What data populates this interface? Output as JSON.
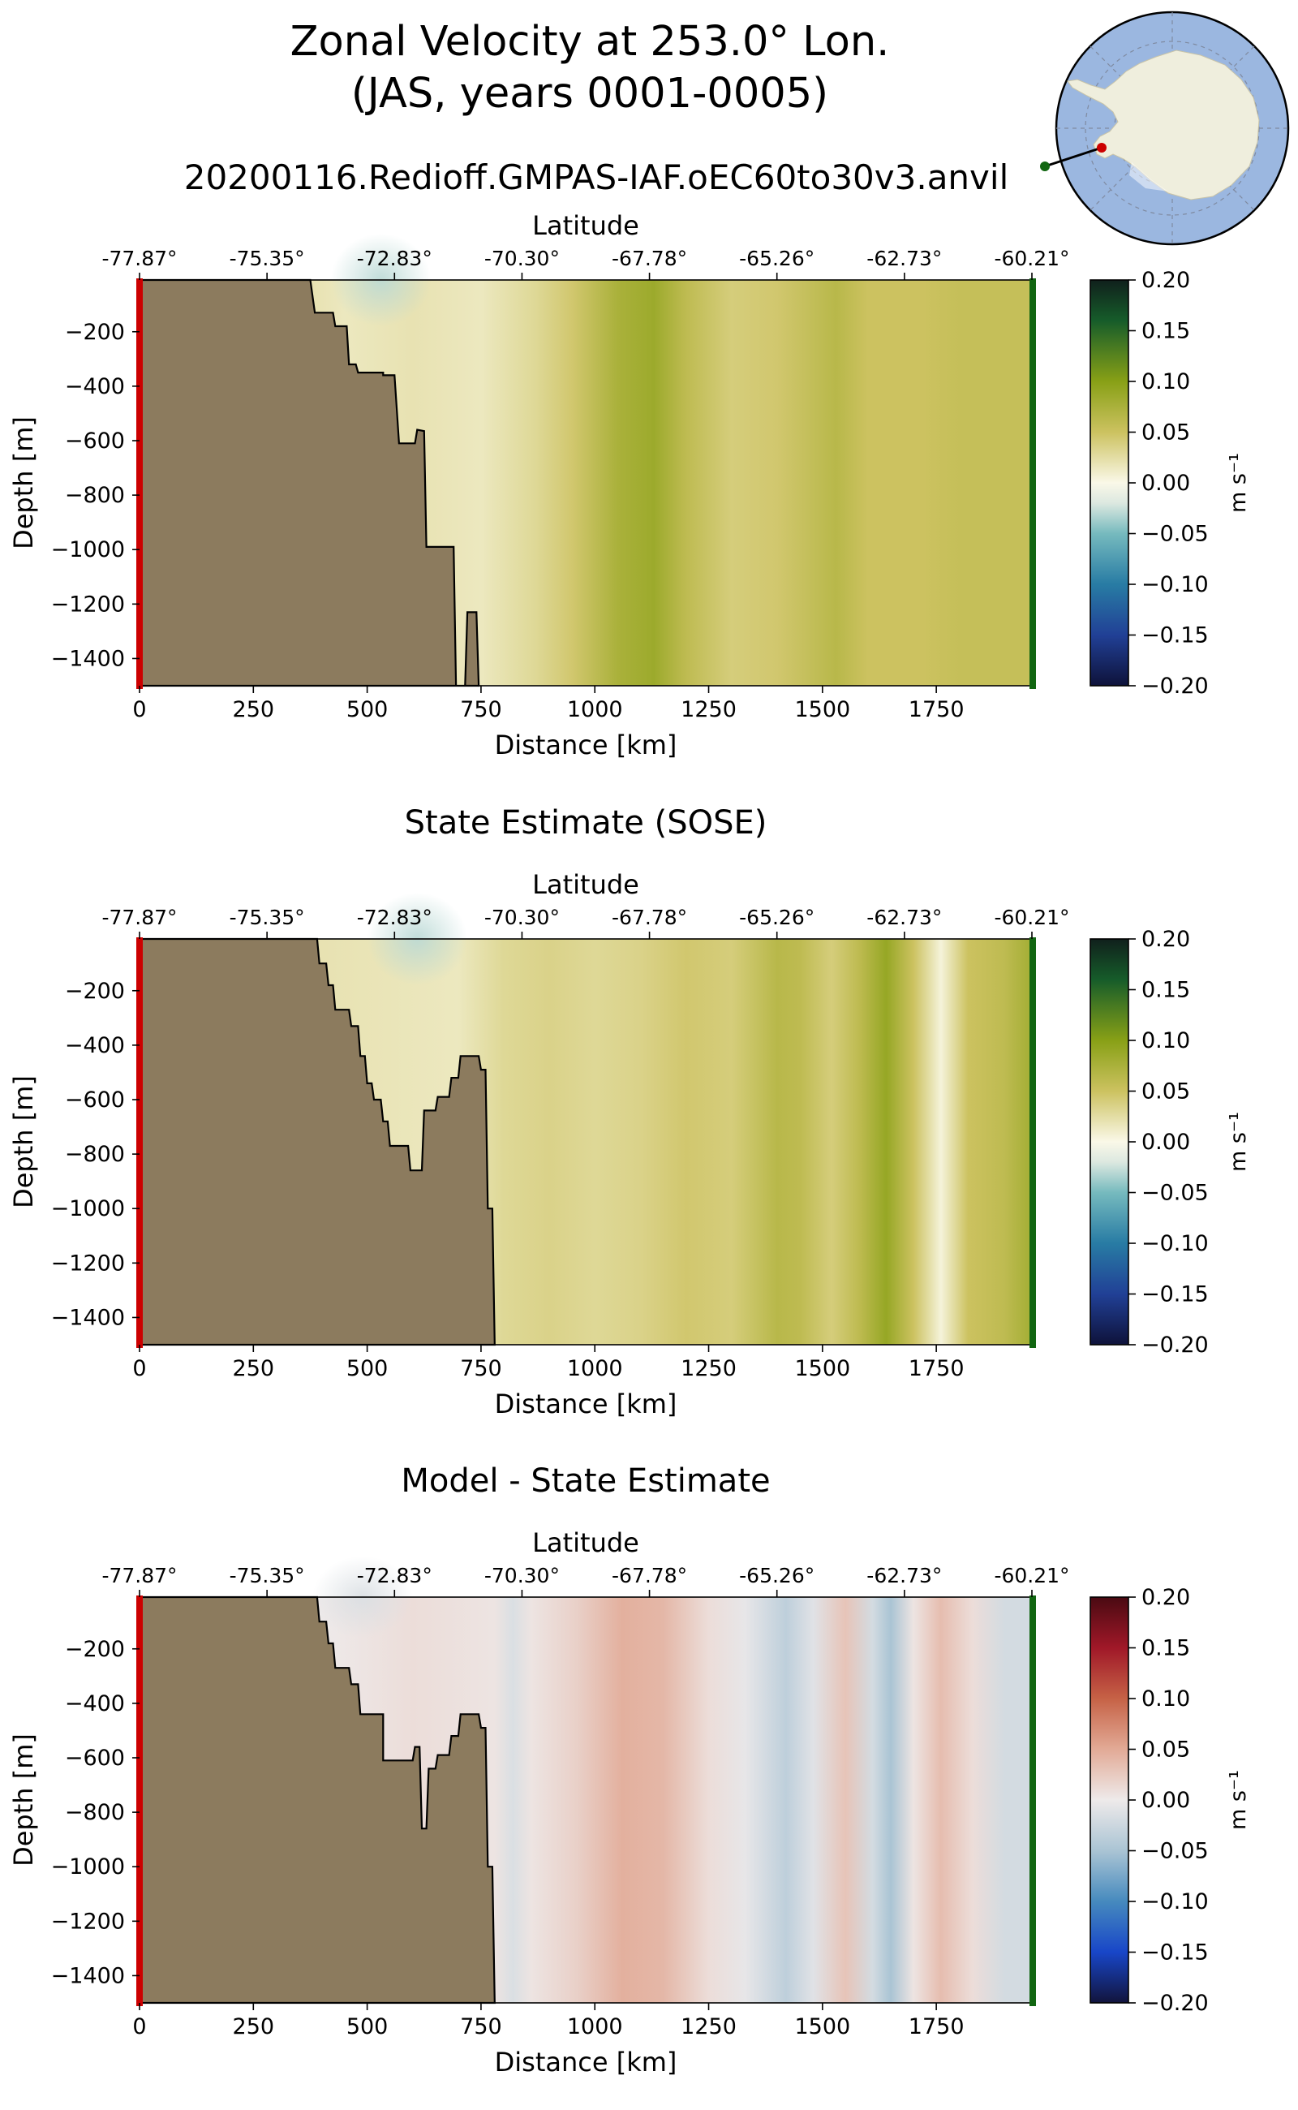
{
  "figure": {
    "title_line1": "Zonal Velocity at 253.0° Lon.",
    "title_line2": "(JAS, years 0001-0005)",
    "run_name": "20200116.Redioff.GMPAS-IAF.oEC60to30v3.anvil"
  },
  "colors": {
    "land": "#8c7b5e",
    "start_marker": "#cc0000",
    "end_marker": "#116611",
    "map_ocean": "#9bb7e0",
    "map_land": "#efeedd"
  },
  "chart_data": [
    {
      "type": "heatmap",
      "id": "model",
      "title": "",
      "xlabel": "Distance [km]",
      "ylabel": "Depth [m]",
      "top_axis_label": "Latitude",
      "xlim": [
        0,
        1960
      ],
      "ylim": [
        -1500,
        -10
      ],
      "xticks": [
        0,
        250,
        500,
        750,
        1000,
        1250,
        1500,
        1750
      ],
      "yticks": [
        -200,
        -400,
        -600,
        -800,
        -1000,
        -1200,
        -1400
      ],
      "lat_ticks": [
        "-77.87°",
        "-75.35°",
        "-72.83°",
        "-70.30°",
        "-67.78°",
        "-65.26°",
        "-62.73°",
        "-60.21°"
      ],
      "colorbar": {
        "label": "m s⁻¹",
        "cmap": "green-yellow-white-blue",
        "vmin": -0.2,
        "vmax": 0.2,
        "ticks": [
          "0.20",
          "0.15",
          "0.10",
          "0.05",
          "0.00",
          "−0.05",
          "−0.10",
          "−0.15",
          "−0.20"
        ]
      },
      "field_profile_km_ms": [
        [
          0,
          0.02
        ],
        [
          380,
          0.02
        ],
        [
          450,
          0.015
        ],
        [
          600,
          0.02
        ],
        [
          750,
          0.015
        ],
        [
          870,
          0.03
        ],
        [
          950,
          0.045
        ],
        [
          1050,
          0.075
        ],
        [
          1130,
          0.085
        ],
        [
          1200,
          0.06
        ],
        [
          1300,
          0.04
        ],
        [
          1400,
          0.045
        ],
        [
          1530,
          0.065
        ],
        [
          1600,
          0.05
        ],
        [
          1720,
          0.05
        ],
        [
          1800,
          0.055
        ],
        [
          1960,
          0.055
        ]
      ],
      "surface_anomaly": {
        "x_range_km": [
          420,
          640
        ],
        "depth_range_m": [
          -10,
          -180
        ],
        "value": -0.03
      },
      "bathymetry_km_m": [
        [
          0,
          -10
        ],
        [
          375,
          -10
        ],
        [
          385,
          -130
        ],
        [
          425,
          -130
        ],
        [
          430,
          -180
        ],
        [
          455,
          -180
        ],
        [
          460,
          -320
        ],
        [
          475,
          -320
        ],
        [
          480,
          -350
        ],
        [
          535,
          -350
        ],
        [
          535,
          -360
        ],
        [
          560,
          -360
        ],
        [
          570,
          -610
        ],
        [
          605,
          -610
        ],
        [
          610,
          -560
        ],
        [
          625,
          -565
        ],
        [
          630,
          -990
        ],
        [
          690,
          -990
        ],
        [
          695,
          -1500
        ],
        [
          715,
          -1500
        ],
        [
          720,
          -1230
        ],
        [
          740,
          -1230
        ],
        [
          745,
          -1500
        ],
        [
          0,
          -1500
        ]
      ]
    },
    {
      "type": "heatmap",
      "id": "sose",
      "title": "State Estimate (SOSE)",
      "xlabel": "Distance [km]",
      "ylabel": "Depth [m]",
      "top_axis_label": "Latitude",
      "xlim": [
        0,
        1960
      ],
      "ylim": [
        -1500,
        -10
      ],
      "xticks": [
        0,
        250,
        500,
        750,
        1000,
        1250,
        1500,
        1750
      ],
      "yticks": [
        -200,
        -400,
        -600,
        -800,
        -1000,
        -1200,
        -1400
      ],
      "lat_ticks": [
        "-77.87°",
        "-75.35°",
        "-72.83°",
        "-70.30°",
        "-67.78°",
        "-65.26°",
        "-62.73°",
        "-60.21°"
      ],
      "colorbar": {
        "label": "m s⁻¹",
        "cmap": "green-yellow-white-blue",
        "vmin": -0.2,
        "vmax": 0.2,
        "ticks": [
          "0.20",
          "0.15",
          "0.10",
          "0.05",
          "0.00",
          "−0.05",
          "−0.10",
          "−0.15",
          "−0.20"
        ]
      },
      "field_profile_km_ms": [
        [
          0,
          0.02
        ],
        [
          400,
          0.02
        ],
        [
          700,
          0.015
        ],
        [
          800,
          0.03
        ],
        [
          900,
          0.035
        ],
        [
          1000,
          0.03
        ],
        [
          1100,
          0.035
        ],
        [
          1200,
          0.045
        ],
        [
          1300,
          0.04
        ],
        [
          1400,
          0.065
        ],
        [
          1450,
          0.06
        ],
        [
          1520,
          0.04
        ],
        [
          1580,
          0.06
        ],
        [
          1640,
          0.09
        ],
        [
          1700,
          0.05
        ],
        [
          1760,
          0.005
        ],
        [
          1820,
          0.05
        ],
        [
          1900,
          0.06
        ],
        [
          1960,
          0.08
        ]
      ],
      "surface_anomaly": {
        "x_range_km": [
          500,
          720
        ],
        "depth_range_m": [
          -10,
          -180
        ],
        "value": -0.03
      },
      "bathymetry_km_m": [
        [
          0,
          -10
        ],
        [
          390,
          -10
        ],
        [
          395,
          -100
        ],
        [
          410,
          -100
        ],
        [
          415,
          -180
        ],
        [
          425,
          -180
        ],
        [
          430,
          -270
        ],
        [
          460,
          -270
        ],
        [
          465,
          -330
        ],
        [
          480,
          -330
        ],
        [
          485,
          -440
        ],
        [
          495,
          -440
        ],
        [
          500,
          -540
        ],
        [
          510,
          -540
        ],
        [
          515,
          -600
        ],
        [
          530,
          -600
        ],
        [
          535,
          -680
        ],
        [
          545,
          -680
        ],
        [
          550,
          -770
        ],
        [
          590,
          -770
        ],
        [
          595,
          -860
        ],
        [
          620,
          -860
        ],
        [
          625,
          -640
        ],
        [
          650,
          -640
        ],
        [
          655,
          -590
        ],
        [
          680,
          -590
        ],
        [
          685,
          -520
        ],
        [
          700,
          -520
        ],
        [
          705,
          -440
        ],
        [
          745,
          -440
        ],
        [
          750,
          -490
        ],
        [
          760,
          -490
        ],
        [
          765,
          -1000
        ],
        [
          775,
          -1000
        ],
        [
          780,
          -1500
        ],
        [
          0,
          -1500
        ]
      ]
    },
    {
      "type": "heatmap",
      "id": "difference",
      "title": "Model - State Estimate",
      "xlabel": "Distance [km]",
      "ylabel": "Depth [m]",
      "top_axis_label": "Latitude",
      "xlim": [
        0,
        1960
      ],
      "ylim": [
        -1500,
        -10
      ],
      "xticks": [
        0,
        250,
        500,
        750,
        1000,
        1250,
        1500,
        1750
      ],
      "yticks": [
        -200,
        -400,
        -600,
        -800,
        -1000,
        -1200,
        -1400
      ],
      "lat_ticks": [
        "-77.87°",
        "-75.35°",
        "-72.83°",
        "-70.30°",
        "-67.78°",
        "-65.26°",
        "-62.73°",
        "-60.21°"
      ],
      "colorbar": {
        "label": "m s⁻¹",
        "cmap": "red-white-blue",
        "vmin": -0.2,
        "vmax": 0.2,
        "ticks": [
          "0.20",
          "0.15",
          "0.10",
          "0.05",
          "0.00",
          "−0.05",
          "−0.10",
          "−0.15",
          "−0.20"
        ]
      },
      "field_profile_km_ms": [
        [
          0,
          0.0
        ],
        [
          400,
          0.0
        ],
        [
          600,
          0.01
        ],
        [
          780,
          0.005
        ],
        [
          820,
          -0.015
        ],
        [
          860,
          0.005
        ],
        [
          960,
          0.02
        ],
        [
          1060,
          0.045
        ],
        [
          1150,
          0.04
        ],
        [
          1250,
          0.01
        ],
        [
          1330,
          -0.005
        ],
        [
          1420,
          -0.035
        ],
        [
          1480,
          -0.01
        ],
        [
          1550,
          0.03
        ],
        [
          1610,
          -0.02
        ],
        [
          1650,
          -0.05
        ],
        [
          1700,
          0.005
        ],
        [
          1760,
          0.035
        ],
        [
          1830,
          0.01
        ],
        [
          1900,
          -0.02
        ],
        [
          1960,
          -0.02
        ]
      ],
      "surface_anomaly": {
        "x_range_km": [
          380,
          600
        ],
        "depth_range_m": [
          -10,
          -160
        ],
        "value": -0.015
      },
      "bathymetry_km_m": [
        [
          0,
          -10
        ],
        [
          390,
          -10
        ],
        [
          395,
          -100
        ],
        [
          410,
          -100
        ],
        [
          415,
          -180
        ],
        [
          425,
          -180
        ],
        [
          430,
          -270
        ],
        [
          460,
          -270
        ],
        [
          465,
          -330
        ],
        [
          480,
          -330
        ],
        [
          485,
          -440
        ],
        [
          535,
          -440
        ],
        [
          535,
          -610
        ],
        [
          600,
          -610
        ],
        [
          605,
          -560
        ],
        [
          615,
          -560
        ],
        [
          620,
          -860
        ],
        [
          630,
          -860
        ],
        [
          635,
          -640
        ],
        [
          650,
          -640
        ],
        [
          655,
          -590
        ],
        [
          680,
          -590
        ],
        [
          685,
          -520
        ],
        [
          700,
          -520
        ],
        [
          705,
          -440
        ],
        [
          745,
          -440
        ],
        [
          750,
          -490
        ],
        [
          760,
          -490
        ],
        [
          765,
          -1000
        ],
        [
          775,
          -1000
        ],
        [
          780,
          -1500
        ],
        [
          0,
          -1500
        ]
      ]
    }
  ]
}
